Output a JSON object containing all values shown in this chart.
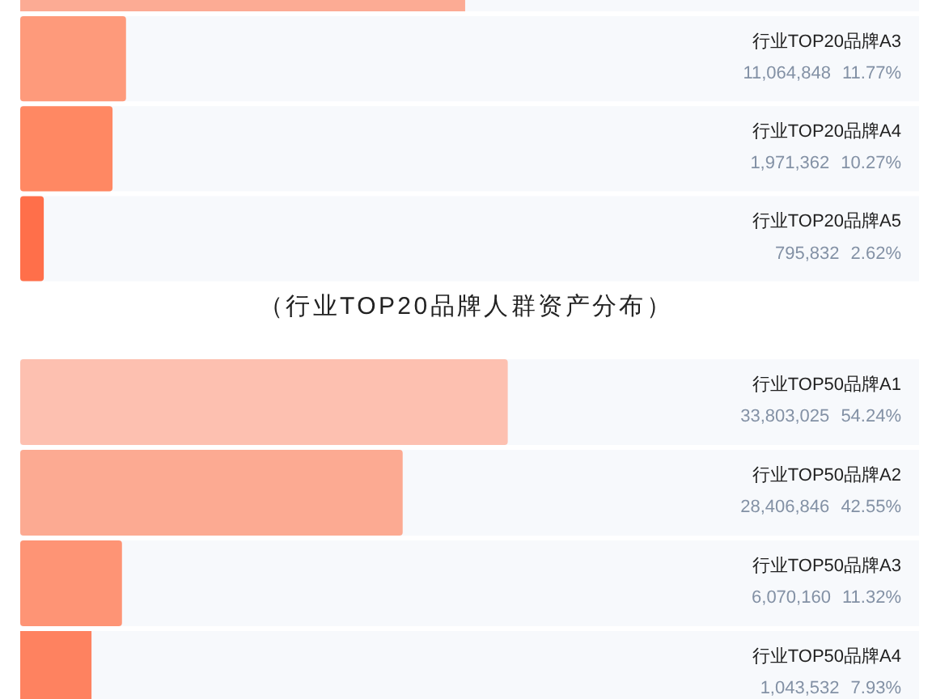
{
  "chart_data": [
    {
      "type": "bar",
      "orientation": "horizontal",
      "title": "（行业TOP20品牌人群资产分布）",
      "categories": [
        null,
        "行业TOP20品牌A3",
        "行业TOP20品牌A4",
        "行业TOP20品牌A5"
      ],
      "values": [
        49.5,
        11.77,
        10.27,
        2.62
      ],
      "value_labels": [
        null,
        "11,064,848 11.77%",
        "1,971,362 10.27%",
        "795,832 2.62%"
      ],
      "colors": [
        "#fcab94",
        "#fe9a7b",
        "#ff8863",
        "#ff6f4a"
      ],
      "xlim": [
        0,
        100
      ]
    },
    {
      "type": "bar",
      "orientation": "horizontal",
      "categories": [
        "行业TOP50品牌A1",
        "行业TOP50品牌A2",
        "行业TOP50品牌A3",
        "行业TOP50品牌A4"
      ],
      "values": [
        54.24,
        42.55,
        11.32,
        7.93
      ],
      "value_labels": [
        "33,803,025 54.24%",
        "28,406,846 42.55%",
        "6,070,160 11.32%",
        "1,043,532 7.93%"
      ],
      "colors": [
        "#fdc0b0",
        "#fcaa92",
        "#fe9475",
        "#fe8260"
      ],
      "xlim": [
        0,
        100
      ]
    }
  ]
}
